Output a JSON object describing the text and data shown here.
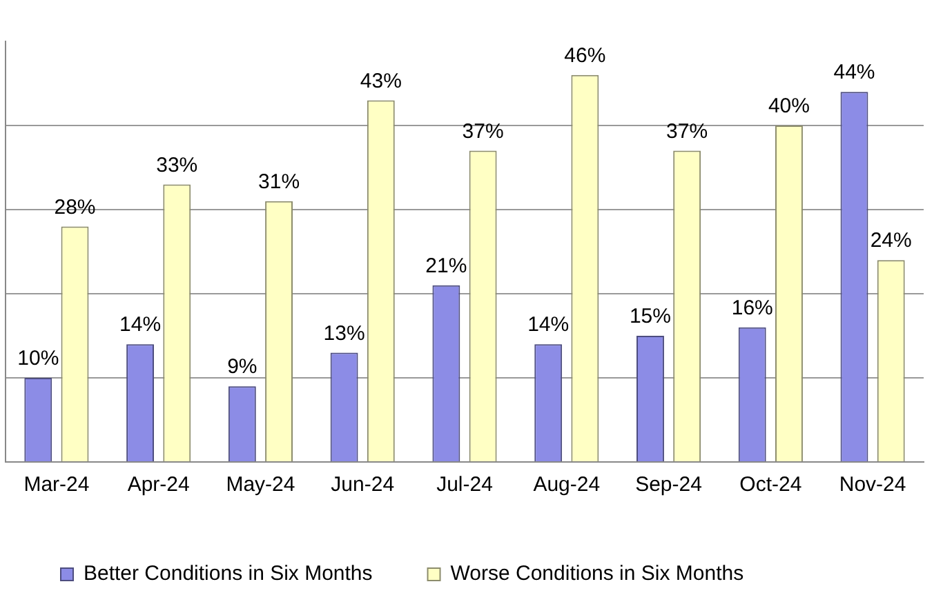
{
  "chart_data": {
    "type": "bar",
    "categories": [
      "Mar-24",
      "Apr-24",
      "May-24",
      "Jun-24",
      "Jul-24",
      "Aug-24",
      "Sep-24",
      "Oct-24",
      "Nov-24"
    ],
    "series": [
      {
        "name": "Better Conditions in Six Months",
        "color": "#8c8ce6",
        "values": [
          10,
          14,
          9,
          13,
          21,
          14,
          15,
          16,
          44
        ],
        "value_labels": [
          "10%",
          "14%",
          "9%",
          "13%",
          "21%",
          "14%",
          "15%",
          "16%",
          "44%"
        ]
      },
      {
        "name": "Worse Conditions in Six Months",
        "color": "#ffffc4",
        "values": [
          28,
          33,
          31,
          43,
          37,
          46,
          37,
          40,
          24
        ],
        "value_labels": [
          "28%",
          "33%",
          "31%",
          "43%",
          "37%",
          "46%",
          "37%",
          "40%",
          "24%"
        ]
      }
    ],
    "ylim": [
      0,
      50
    ],
    "yticks": [
      {
        "value": 0,
        "label": null
      },
      {
        "value": 10,
        "label": null
      },
      {
        "value": 20,
        "label": null
      },
      {
        "value": 30,
        "label": null
      },
      {
        "value": 40,
        "label": null
      }
    ],
    "tick_labels": "x",
    "grid": "y",
    "legend": "bottom"
  }
}
